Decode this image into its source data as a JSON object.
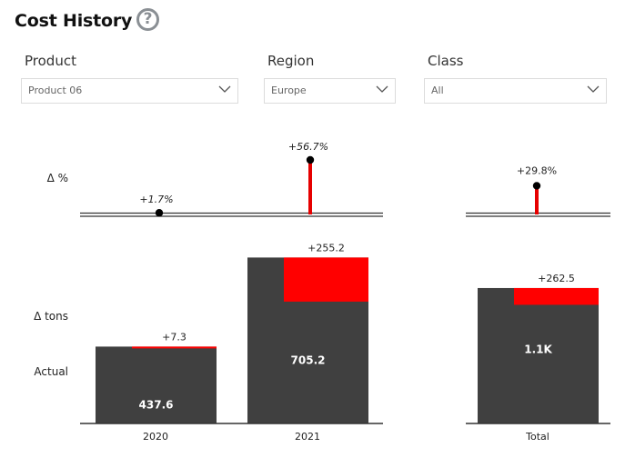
{
  "header": {
    "title": "Cost History",
    "help_glyph": "?",
    "help_icon": "question-circle-icon"
  },
  "filters": [
    {
      "label": "Product",
      "value": "Product 06"
    },
    {
      "label": "Region",
      "value": "Europe"
    },
    {
      "label": "Class",
      "value": "All"
    }
  ],
  "colors": {
    "base": "#404040",
    "delta": "#ff0000",
    "lollipop": "#e60000",
    "axis": "#333333"
  },
  "chart_data": {
    "type": "bar",
    "row_labels": {
      "delta_pct": "Δ %",
      "delta_tons": "Δ tons",
      "actual": "Actual"
    },
    "categories": [
      "2020",
      "2021"
    ],
    "total_category": "Total",
    "series": [
      {
        "name": "Actual",
        "values": [
          437.6,
          705.2
        ],
        "labels": [
          "437.6",
          "705.2"
        ]
      },
      {
        "name": "Δ tons",
        "values": [
          7.3,
          255.2
        ],
        "labels": [
          "+7.3",
          "+255.2"
        ]
      },
      {
        "name": "Δ %",
        "values": [
          1.7,
          56.7
        ],
        "labels": [
          "+1.7%",
          "+56.7%"
        ]
      }
    ],
    "total": {
      "actual_label": "1.1K",
      "delta_tons": 262.5,
      "delta_tons_label": "+262.5",
      "delta_pct": 29.8,
      "delta_pct_label": "+29.8%"
    }
  }
}
